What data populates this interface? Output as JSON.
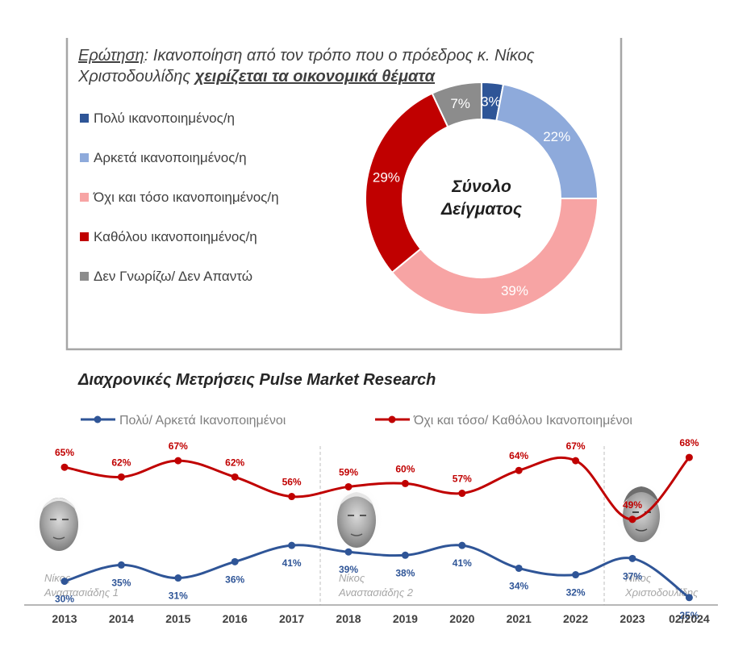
{
  "top_panel": {
    "question_label": "Ερώτηση",
    "question_line1_rest": ": Ικανοποίηση από τον τρόπο που ο πρόεδρος κ. Νίκος",
    "question_line2_start": "Χριστοδουλίδης ",
    "question_line2_emph": "χειρίζεται τα οικονομικά θέματα",
    "center_line1": "Σύνολο",
    "center_line2": "Δείγματος"
  },
  "bottom_panel": {
    "title": "Διαχρονικές Μετρήσεις Pulse Market Research",
    "president_labels": [
      {
        "line1": "Νίκος",
        "line2": "Αναστασιάδης 1"
      },
      {
        "line1": "Νίκος",
        "line2": "Αναστασιάδης 2"
      },
      {
        "line1": "Νίκος",
        "line2": "Χριστοδουλίδης"
      }
    ]
  },
  "colors": {
    "very": "#2E5597",
    "fairly": "#8EAADB",
    "not_so": "#F7A4A4",
    "not_at_all": "#C00000",
    "dont_know": "#8C8C8C",
    "line_blue": "#2F5597",
    "line_red": "#C00000",
    "panel_border": "#A6A6A6"
  },
  "chart_data": [
    {
      "type": "pie",
      "title": "",
      "categories": [
        "Πολύ ικανοποιημένος/η",
        "Αρκετά ικανοποιημένος/η",
        "Όχι και τόσο ικανοποιημένος/η",
        "Καθόλου ικανοποιημένος/η",
        "Δεν Γνωρίζω/ Δεν Απαντώ"
      ],
      "values": [
        3,
        22,
        39,
        29,
        7
      ],
      "value_labels": [
        "3%",
        "22%",
        "39%",
        "29%",
        "7%"
      ],
      "donut": true,
      "legend": "left"
    },
    {
      "type": "line",
      "title": "Διαχρονικές Μετρήσεις Pulse Market Research",
      "categories": [
        "2013",
        "2014",
        "2015",
        "2016",
        "2017",
        "2018",
        "2019",
        "2020",
        "2021",
        "2022",
        "2023",
        "02/2024"
      ],
      "series": [
        {
          "name": "Πολύ/ Αρκετά Ικανοποιημένοι",
          "values": [
            30,
            35,
            31,
            36,
            41,
            39,
            38,
            41,
            34,
            32,
            37,
            25
          ]
        },
        {
          "name": "Όχι και τόσο/ Καθόλου Ικανοποιημένοι",
          "values": [
            65,
            62,
            67,
            62,
            56,
            59,
            60,
            57,
            64,
            67,
            49,
            68
          ]
        }
      ],
      "legend": "top",
      "grid": false
    }
  ]
}
